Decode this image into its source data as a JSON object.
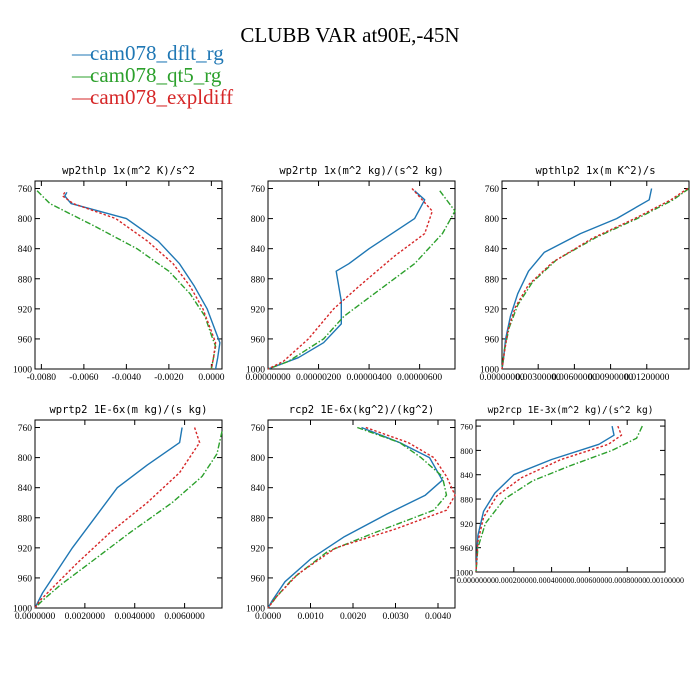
{
  "figure": {
    "title": "CLUBB VAR at90E,-45N",
    "legend": [
      {
        "label": "cam078_dflt_rg",
        "color": "#1f77b4",
        "dash": "solid"
      },
      {
        "label": "cam078_qt5_rg",
        "color": "#2ca02c",
        "dash": "dashdot"
      },
      {
        "label": "cam078_expldiff",
        "color": "#d62728",
        "dash": "dot"
      }
    ]
  },
  "chart_data": [
    {
      "type": "line",
      "title": "wp2thlp  1x(m^2 K)/s^2",
      "xlim": [
        -0.0083,
        0.0005
      ],
      "ylim": [
        1000,
        750
      ],
      "yticks": [
        760,
        800,
        840,
        880,
        920,
        960,
        1000
      ],
      "xticks": [
        -0.008,
        -0.006,
        -0.004,
        -0.002,
        0.0
      ],
      "xticklabels": [
        "-0.0080",
        "-0.0060",
        "-0.0040",
        "-0.0020",
        "0.0000"
      ],
      "series": [
        {
          "name": "cam078_dflt_rg",
          "points": [
            [
              -0.0068,
              765
            ],
            [
              -0.0069,
              770
            ],
            [
              -0.0066,
              780
            ],
            [
              -0.004,
              800
            ],
            [
              -0.0025,
              830
            ],
            [
              -0.0015,
              860
            ],
            [
              -0.0008,
              890
            ],
            [
              -0.0002,
              920
            ],
            [
              0.0002,
              950
            ],
            [
              0.0004,
              965
            ],
            [
              0.0003,
              985
            ],
            [
              0.0002,
              1000
            ]
          ]
        },
        {
          "name": "cam078_qt5_rg",
          "points": [
            [
              -0.0082,
              763
            ],
            [
              -0.0076,
              780
            ],
            [
              -0.0055,
              810
            ],
            [
              -0.0035,
              840
            ],
            [
              -0.002,
              870
            ],
            [
              -0.001,
              900
            ],
            [
              -0.0003,
              930
            ],
            [
              0.0,
              955
            ],
            [
              0.0002,
              970
            ],
            [
              0.0001,
              985
            ],
            [
              0.0,
              1000
            ]
          ]
        },
        {
          "name": "cam078_expldiff",
          "points": [
            [
              -0.0069,
              765
            ],
            [
              -0.007,
              770
            ],
            [
              -0.0065,
              780
            ],
            [
              -0.0045,
              800
            ],
            [
              -0.003,
              830
            ],
            [
              -0.0018,
              860
            ],
            [
              -0.001,
              890
            ],
            [
              -0.0004,
              920
            ],
            [
              0.0,
              950
            ],
            [
              0.0002,
              965
            ],
            [
              0.0001,
              985
            ],
            [
              0.0,
              1000
            ]
          ]
        }
      ]
    },
    {
      "type": "line",
      "title": "wp2rtp  1x(m^2 kg)/(s^2 kg)",
      "xlim": [
        0.0,
        7.4e-06
      ],
      "ylim": [
        1000,
        750
      ],
      "yticks": [
        760,
        800,
        840,
        880,
        920,
        960,
        1000
      ],
      "xticks": [
        0.0,
        2e-06,
        4e-06,
        6e-06
      ],
      "xticklabels": [
        "0.00000000",
        "0.00000200",
        "0.00000400",
        "0.00000600"
      ],
      "series": [
        {
          "name": "cam078_dflt_rg",
          "points": [
            [
              5.8e-06,
              763
            ],
            [
              6.2e-06,
              775
            ],
            [
              5.8e-06,
              800
            ],
            [
              4e-06,
              840
            ],
            [
              3.2e-06,
              860
            ],
            [
              2.7e-06,
              870
            ],
            [
              2.9e-06,
              910
            ],
            [
              2.9e-06,
              940
            ],
            [
              2.2e-06,
              965
            ],
            [
              1.2e-06,
              985
            ],
            [
              0.0,
              1000
            ]
          ]
        },
        {
          "name": "cam078_qt5_rg",
          "points": [
            [
              6.8e-06,
              763
            ],
            [
              7.4e-06,
              790
            ],
            [
              6.9e-06,
              820
            ],
            [
              5.8e-06,
              860
            ],
            [
              4.2e-06,
              900
            ],
            [
              3e-06,
              930
            ],
            [
              2.2e-06,
              960
            ],
            [
              8e-07,
              990
            ],
            [
              0.0,
              1000
            ]
          ]
        },
        {
          "name": "cam078_expldiff",
          "points": [
            [
              5.7e-06,
              760
            ],
            [
              6.5e-06,
              790
            ],
            [
              6.2e-06,
              820
            ],
            [
              5e-06,
              850
            ],
            [
              3.6e-06,
              890
            ],
            [
              2.6e-06,
              920
            ],
            [
              1.6e-06,
              960
            ],
            [
              6e-07,
              990
            ],
            [
              0.0,
              1000
            ]
          ]
        }
      ]
    },
    {
      "type": "line",
      "title": "wpthlp2  1x(m K^2)/s",
      "xlim": [
        0.0,
        0.0155
      ],
      "ylim": [
        1000,
        750
      ],
      "yticks": [
        760,
        800,
        840,
        880,
        920,
        960,
        1000
      ],
      "xticks": [
        0.0,
        0.003,
        0.006,
        0.009,
        0.012
      ],
      "xticklabels": [
        "0.00000000",
        "0.00300000",
        "0.00600000",
        "0.00900000",
        "0.01200000"
      ],
      "series": [
        {
          "name": "cam078_dflt_rg",
          "points": [
            [
              0.0124,
              760
            ],
            [
              0.0122,
              775
            ],
            [
              0.0095,
              800
            ],
            [
              0.0065,
              820
            ],
            [
              0.0035,
              845
            ],
            [
              0.0022,
              870
            ],
            [
              0.0013,
              900
            ],
            [
              0.0007,
              930
            ],
            [
              0.0003,
              960
            ],
            [
              0.0001,
              990
            ],
            [
              0.0,
              1000
            ]
          ]
        },
        {
          "name": "cam078_qt5_rg",
          "points": [
            [
              0.0155,
              760
            ],
            [
              0.0142,
              775
            ],
            [
              0.0112,
              800
            ],
            [
              0.0078,
              825
            ],
            [
              0.0045,
              855
            ],
            [
              0.0025,
              885
            ],
            [
              0.0013,
              915
            ],
            [
              0.0006,
              945
            ],
            [
              0.0002,
              975
            ],
            [
              0.0,
              1000
            ]
          ]
        },
        {
          "name": "cam078_expldiff",
          "points": [
            [
              0.0154,
              760
            ],
            [
              0.014,
              775
            ],
            [
              0.011,
              800
            ],
            [
              0.0075,
              826
            ],
            [
              0.0042,
              858
            ],
            [
              0.0022,
              888
            ],
            [
              0.0011,
              918
            ],
            [
              0.0005,
              948
            ],
            [
              0.0002,
              978
            ],
            [
              0.0,
              1000
            ]
          ]
        }
      ]
    },
    {
      "type": "line",
      "title": "wprtp2  1E-6x(m kg)/(s kg)",
      "xlim": [
        0.0,
        0.0075
      ],
      "ylim": [
        1000,
        750
      ],
      "yticks": [
        760,
        800,
        840,
        880,
        920,
        960,
        1000
      ],
      "xticks": [
        0.0,
        0.002,
        0.004,
        0.006
      ],
      "xticklabels": [
        "0.0000000",
        "0.0020000",
        "0.0040000",
        "0.0060000"
      ],
      "series": [
        {
          "name": "cam078_dflt_rg",
          "points": [
            [
              0.0059,
              760
            ],
            [
              0.0058,
              780
            ],
            [
              0.0045,
              810
            ],
            [
              0.0033,
              840
            ],
            [
              0.0024,
              880
            ],
            [
              0.0015,
              920
            ],
            [
              0.0008,
              955
            ],
            [
              0.0003,
              980
            ],
            [
              0.0,
              1000
            ]
          ]
        },
        {
          "name": "cam078_qt5_rg",
          "points": [
            [
              0.0075,
              765
            ],
            [
              0.0073,
              795
            ],
            [
              0.0067,
              825
            ],
            [
              0.0055,
              860
            ],
            [
              0.0038,
              900
            ],
            [
              0.0022,
              940
            ],
            [
              0.001,
              970
            ],
            [
              0.0003,
              990
            ],
            [
              0.0,
              1000
            ]
          ]
        },
        {
          "name": "cam078_expldiff",
          "points": [
            [
              0.0064,
              760
            ],
            [
              0.0066,
              780
            ],
            [
              0.0058,
              820
            ],
            [
              0.0045,
              860
            ],
            [
              0.003,
              900
            ],
            [
              0.0017,
              940
            ],
            [
              0.0008,
              970
            ],
            [
              0.0002,
              990
            ],
            [
              0.0,
              1000
            ]
          ]
        }
      ]
    },
    {
      "type": "line",
      "title": "rcp2  1E-6x(kg^2)/(kg^2)",
      "xlim": [
        0.0,
        0.0044
      ],
      "ylim": [
        1000,
        750
      ],
      "yticks": [
        760,
        800,
        840,
        880,
        920,
        960,
        1000
      ],
      "xticks": [
        0.0,
        0.001,
        0.002,
        0.003,
        0.004
      ],
      "xticklabels": [
        "0.0000",
        "0.0010",
        "0.0020",
        "0.0030",
        "0.0040"
      ],
      "series": [
        {
          "name": "cam078_dflt_rg",
          "points": [
            [
              0.0022,
              760
            ],
            [
              0.0031,
              780
            ],
            [
              0.0038,
              800
            ],
            [
              0.0041,
              830
            ],
            [
              0.0037,
              850
            ],
            [
              0.0028,
              875
            ],
            [
              0.0018,
              905
            ],
            [
              0.001,
              935
            ],
            [
              0.0004,
              965
            ],
            [
              0.0001,
              990
            ],
            [
              0.0,
              1000
            ]
          ]
        },
        {
          "name": "cam078_qt5_rg",
          "points": [
            [
              0.0021,
              760
            ],
            [
              0.0031,
              780
            ],
            [
              0.0036,
              800
            ],
            [
              0.0041,
              825
            ],
            [
              0.0042,
              850
            ],
            [
              0.0039,
              870
            ],
            [
              0.0025,
              900
            ],
            [
              0.0014,
              925
            ],
            [
              0.0006,
              960
            ],
            [
              0.0002,
              985
            ],
            [
              0.0,
              1000
            ]
          ]
        },
        {
          "name": "cam078_expldiff",
          "points": [
            [
              0.0023,
              760
            ],
            [
              0.0033,
              780
            ],
            [
              0.0039,
              800
            ],
            [
              0.0042,
              825
            ],
            [
              0.0044,
              850
            ],
            [
              0.0042,
              870
            ],
            [
              0.003,
              895
            ],
            [
              0.0016,
              920
            ],
            [
              0.0007,
              955
            ],
            [
              0.0002,
              985
            ],
            [
              0.0,
              1000
            ]
          ]
        }
      ]
    },
    {
      "type": "line",
      "title": "wp2rcp  1E-3x(m^2 kg)/(s^2 kg)",
      "xlim": [
        0.0,
        0.001
      ],
      "ylim": [
        1000,
        750
      ],
      "yticks": [
        760,
        800,
        840,
        880,
        920,
        960,
        1000
      ],
      "xticks": [
        0.0,
        0.0002,
        0.0004,
        0.0006,
        0.0008,
        0.001
      ],
      "xticklabels": [
        "0.00000000",
        "0.00020000",
        "0.00040000",
        "0.00060000",
        "0.00080000",
        "0.00100000"
      ],
      "series": [
        {
          "name": "cam078_dflt_rg",
          "points": [
            [
              0.00072,
              760
            ],
            [
              0.00073,
              775
            ],
            [
              0.00065,
              790
            ],
            [
              0.0004,
              815
            ],
            [
              0.0002,
              840
            ],
            [
              0.0001,
              870
            ],
            [
              4e-05,
              900
            ],
            [
              1e-05,
              940
            ],
            [
              0.0,
              1000
            ]
          ]
        },
        {
          "name": "cam078_qt5_rg",
          "points": [
            [
              0.00088,
              760
            ],
            [
              0.00085,
              780
            ],
            [
              0.00072,
              800
            ],
            [
              0.0005,
              825
            ],
            [
              0.0003,
              850
            ],
            [
              0.00015,
              880
            ],
            [
              5e-05,
              920
            ],
            [
              1e-05,
              960
            ],
            [
              0.0,
              1000
            ]
          ]
        },
        {
          "name": "cam078_expldiff",
          "points": [
            [
              0.00075,
              760
            ],
            [
              0.00077,
              775
            ],
            [
              0.0007,
              790
            ],
            [
              0.00045,
              815
            ],
            [
              0.00024,
              845
            ],
            [
              0.00011,
              875
            ],
            [
              4e-05,
              910
            ],
            [
              1e-05,
              950
            ],
            [
              0.0,
              1000
            ]
          ]
        }
      ]
    }
  ]
}
